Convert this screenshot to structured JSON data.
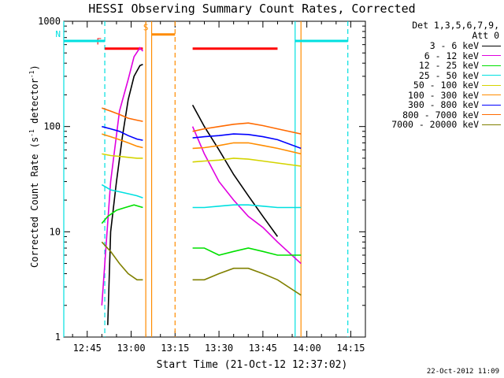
{
  "title": "HESSI Observing Summary Count Rates, Corrected",
  "ylabel_main": "Corrected Count Rate (s",
  "ylabel_sup1": "-1",
  "ylabel_mid": " detector",
  "ylabel_sup2": "-1",
  "ylabel_end": ")",
  "xlabel": "Start Time (21-Oct-12 12:37:02)",
  "footer_date": "22-Oct-2012 11:09",
  "legend_header": [
    "Det 1,3,5,6,7,9,",
    "Att 0"
  ],
  "legend": [
    {
      "label": "3 - 6 keV",
      "color": "#000000"
    },
    {
      "label": "6 - 12 keV",
      "color": "#e000e0"
    },
    {
      "label": "12 - 25 keV",
      "color": "#00e000"
    },
    {
      "label": "25 - 50 keV",
      "color": "#00e0e0"
    },
    {
      "label": "50 - 100 keV",
      "color": "#d4d400"
    },
    {
      "label": "100 - 300 keV",
      "color": "#ff8c00"
    },
    {
      "label": "300 - 800 keV",
      "color": "#0000ff"
    },
    {
      "label": "800 - 7000 keV",
      "color": "#ff6a00"
    },
    {
      "label": "7000 - 20000 keV",
      "color": "#808000"
    }
  ],
  "chart_data": {
    "type": "line",
    "title": "HESSI Observing Summary Count Rates, Corrected",
    "xlabel": "Start Time (21-Oct-12 12:37:02)",
    "ylabel": "Corrected Count Rate (s-1 detector-1)",
    "yscale": "log",
    "ylim": [
      1,
      1000
    ],
    "xlim": [
      "12:37",
      "14:20"
    ],
    "x_ticks": [
      "12:45",
      "13:00",
      "13:15",
      "13:30",
      "13:45",
      "14:00",
      "14:15"
    ],
    "y_ticks": [
      "1",
      "10",
      "100",
      "1000"
    ],
    "series": [
      {
        "name": "3 - 6 keV",
        "color": "#000000",
        "segments": [
          [
            [
              "12:52",
              1.3
            ],
            [
              "12:53",
              10
            ],
            [
              "12:55",
              30
            ],
            [
              "12:57",
              80
            ],
            [
              "12:59",
              180
            ],
            [
              "13:01",
              300
            ],
            [
              "13:03",
              380
            ],
            [
              "13:04",
              390
            ]
          ],
          [
            [
              "13:21",
              160
            ],
            [
              "13:25",
              100
            ],
            [
              "13:30",
              60
            ],
            [
              "13:35",
              35
            ],
            [
              "13:40",
              22
            ],
            [
              "13:45",
              14
            ],
            [
              "13:50",
              9
            ]
          ]
        ]
      },
      {
        "name": "6 - 12 keV",
        "color": "#e000e0",
        "segments": [
          [
            [
              "12:50",
              2
            ],
            [
              "12:53",
              30
            ],
            [
              "12:56",
              140
            ],
            [
              "12:59",
              280
            ],
            [
              "13:01",
              460
            ],
            [
              "13:03",
              560
            ],
            [
              "13:04",
              520
            ]
          ],
          [
            [
              "13:21",
              100
            ],
            [
              "13:25",
              55
            ],
            [
              "13:30",
              30
            ],
            [
              "13:35",
              20
            ],
            [
              "13:40",
              14
            ],
            [
              "13:45",
              11
            ],
            [
              "13:50",
              8
            ],
            [
              "13:58",
              5
            ]
          ]
        ]
      },
      {
        "name": "12 - 25 keV",
        "color": "#00e000",
        "segments": [
          [
            [
              "12:50",
              12
            ],
            [
              "12:52",
              14
            ],
            [
              "12:55",
              16
            ],
            [
              "12:58",
              17
            ],
            [
              "13:01",
              18
            ],
            [
              "13:04",
              17
            ]
          ],
          [
            [
              "13:21",
              7
            ],
            [
              "13:25",
              7
            ],
            [
              "13:30",
              6
            ],
            [
              "13:35",
              6.5
            ],
            [
              "13:40",
              7
            ],
            [
              "13:45",
              6.5
            ],
            [
              "13:50",
              6
            ],
            [
              "13:58",
              6
            ]
          ]
        ]
      },
      {
        "name": "25 - 50 keV",
        "color": "#00e0e0",
        "segments": [
          [
            [
              "12:50",
              28
            ],
            [
              "12:53",
              25
            ],
            [
              "12:56",
              24
            ],
            [
              "12:59",
              23
            ],
            [
              "13:02",
              22
            ],
            [
              "13:04",
              21
            ]
          ],
          [
            [
              "13:21",
              17
            ],
            [
              "13:25",
              17
            ],
            [
              "13:30",
              17.5
            ],
            [
              "13:35",
              18
            ],
            [
              "13:40",
              18
            ],
            [
              "13:45",
              17.5
            ],
            [
              "13:50",
              17
            ],
            [
              "13:58",
              17
            ]
          ]
        ]
      },
      {
        "name": "50 - 100 keV",
        "color": "#d4d400",
        "segments": [
          [
            [
              "12:50",
              55
            ],
            [
              "12:53",
              53
            ],
            [
              "12:56",
              52
            ],
            [
              "12:59",
              51
            ],
            [
              "13:02",
              50
            ],
            [
              "13:04",
              50
            ]
          ],
          [
            [
              "13:21",
              46
            ],
            [
              "13:25",
              47
            ],
            [
              "13:30",
              48
            ],
            [
              "13:35",
              50
            ],
            [
              "13:40",
              49
            ],
            [
              "13:45",
              47
            ],
            [
              "13:50",
              45
            ],
            [
              "13:58",
              42
            ]
          ]
        ]
      },
      {
        "name": "100 - 300 keV",
        "color": "#ff8c00",
        "segments": [
          [
            [
              "12:50",
              85
            ],
            [
              "12:53",
              80
            ],
            [
              "12:56",
              75
            ],
            [
              "12:59",
              70
            ],
            [
              "13:02",
              65
            ],
            [
              "13:04",
              63
            ]
          ],
          [
            [
              "13:21",
              62
            ],
            [
              "13:25",
              63
            ],
            [
              "13:30",
              66
            ],
            [
              "13:35",
              70
            ],
            [
              "13:40",
              70
            ],
            [
              "13:45",
              66
            ],
            [
              "13:50",
              62
            ],
            [
              "13:58",
              55
            ]
          ]
        ]
      },
      {
        "name": "300 - 800 keV",
        "color": "#0000ff",
        "segments": [
          [
            [
              "12:50",
              100
            ],
            [
              "12:53",
              95
            ],
            [
              "12:56",
              90
            ],
            [
              "12:59",
              82
            ],
            [
              "13:02",
              76
            ],
            [
              "13:04",
              74
            ]
          ],
          [
            [
              "13:21",
              78
            ],
            [
              "13:25",
              80
            ],
            [
              "13:30",
              82
            ],
            [
              "13:35",
              85
            ],
            [
              "13:40",
              84
            ],
            [
              "13:45",
              80
            ],
            [
              "13:50",
              75
            ],
            [
              "13:58",
              62
            ]
          ]
        ]
      },
      {
        "name": "800 - 7000 keV",
        "color": "#ff6a00",
        "segments": [
          [
            [
              "12:50",
              150
            ],
            [
              "12:53",
              140
            ],
            [
              "12:56",
              130
            ],
            [
              "12:59",
              120
            ],
            [
              "13:02",
              115
            ],
            [
              "13:04",
              112
            ]
          ],
          [
            [
              "13:21",
              90
            ],
            [
              "13:25",
              95
            ],
            [
              "13:30",
              100
            ],
            [
              "13:35",
              105
            ],
            [
              "13:40",
              108
            ],
            [
              "13:45",
              102
            ],
            [
              "13:50",
              95
            ],
            [
              "13:58",
              85
            ]
          ]
        ]
      },
      {
        "name": "7000 - 20000 keV",
        "color": "#808000",
        "segments": [
          [
            [
              "12:50",
              8
            ],
            [
              "12:53",
              6.5
            ],
            [
              "12:56",
              5
            ],
            [
              "12:59",
              4
            ],
            [
              "13:02",
              3.5
            ],
            [
              "13:04",
              3.5
            ]
          ],
          [
            [
              "13:21",
              3.5
            ],
            [
              "13:25",
              3.5
            ],
            [
              "13:30",
              4
            ],
            [
              "13:35",
              4.5
            ],
            [
              "13:40",
              4.5
            ],
            [
              "13:45",
              4
            ],
            [
              "13:50",
              3.5
            ],
            [
              "13:58",
              2.5
            ]
          ]
        ]
      }
    ],
    "flag_bars": [
      {
        "label": "F",
        "color": "#ff0000",
        "start": "12:51",
        "end": "13:04",
        "level": 550
      },
      {
        "label": "",
        "color": "#ff0000",
        "start": "13:21",
        "end": "13:50",
        "level": 550
      },
      {
        "label": "S",
        "color": "#ff8c00",
        "start": "13:07",
        "end": "13:15",
        "level": 750
      },
      {
        "label": "N",
        "color": "#00e0e0",
        "start": "12:37",
        "end": "12:51",
        "level": 650
      },
      {
        "label": "",
        "color": "#00e0e0",
        "start": "13:56",
        "end": "14:14",
        "level": 650
      }
    ],
    "markers": [
      {
        "time": "12:37",
        "color": "#00e0e0",
        "style": "solid"
      },
      {
        "time": "12:51",
        "color": "#00e0e0",
        "style": "dashed"
      },
      {
        "time": "13:05",
        "color": "#ff8c00",
        "style": "solid"
      },
      {
        "time": "13:07",
        "color": "#ff8c00",
        "style": "solid"
      },
      {
        "time": "13:15",
        "color": "#ff8c00",
        "style": "dashed"
      },
      {
        "time": "13:56",
        "color": "#00e0e0",
        "style": "solid"
      },
      {
        "time": "13:58",
        "color": "#ff8c00",
        "style": "solid"
      },
      {
        "time": "14:14",
        "color": "#00e0e0",
        "style": "dashed"
      }
    ]
  }
}
